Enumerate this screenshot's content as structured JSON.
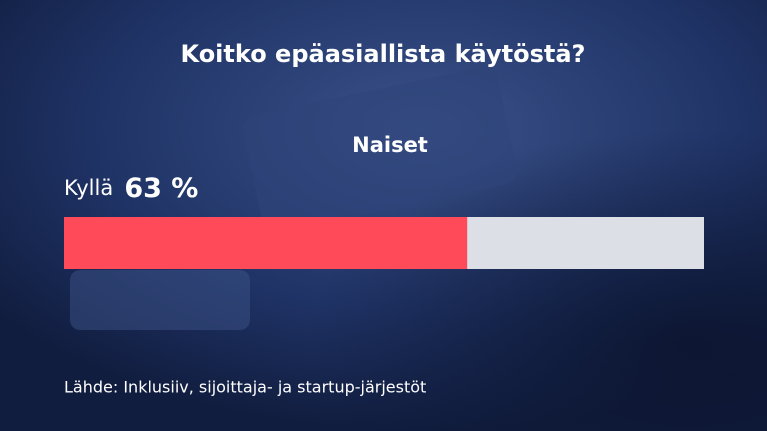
{
  "chart_data": {
    "type": "progress",
    "title": "Koitko epäasiallista käytöstä?",
    "subtitle": "Naiset",
    "categories": [
      "Kyllä"
    ],
    "values": [
      63
    ],
    "value_labels": [
      "63 %"
    ],
    "xlim": [
      0,
      100
    ],
    "color": "#ff4a5a",
    "track_color": "#dcdfe6",
    "source": "Lähde: Inklusiiv, sijoittaja- ja startup-järjestöt"
  }
}
